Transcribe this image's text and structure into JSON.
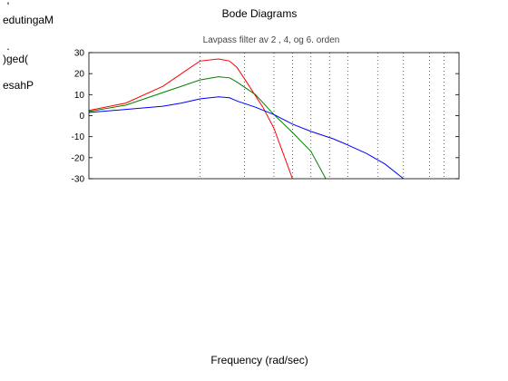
{
  "chart_data": {
    "type": "line",
    "title": "Bode Diagrams",
    "subtitle": "Lavpass filter av  2 , 4, og 6. orden",
    "xlabel": "Frequency (rad/sec)",
    "ylabel": "Phase (deg); Magnitude (dB)",
    "ylabel_rendered": "'\nedutingaM\n\n.\n)ged(\n\nesahP",
    "ylim": [
      -30,
      30
    ],
    "yticks": [
      30,
      20,
      10,
      0,
      -10,
      -20,
      -30
    ],
    "xlim": [
      0,
      1
    ],
    "x_scale": "log",
    "grid": "vertical dotted",
    "series": [
      {
        "color": "#ff0000",
        "x": [
          0,
          0.1,
          0.2,
          0.25,
          0.3,
          0.35,
          0.38,
          0.4,
          0.43,
          0.47,
          0.5,
          0.55
        ],
        "y": [
          2.5,
          6,
          14,
          20,
          26,
          27,
          26,
          23,
          15,
          4,
          -6,
          -30
        ]
      },
      {
        "color": "#008000",
        "x": [
          0,
          0.1,
          0.2,
          0.25,
          0.3,
          0.35,
          0.38,
          0.4,
          0.45,
          0.5,
          0.55,
          0.6,
          0.64
        ],
        "y": [
          2,
          5,
          11,
          14,
          17,
          18.5,
          18,
          16,
          10,
          0.5,
          -8,
          -17,
          -30
        ]
      },
      {
        "color": "#0000ff",
        "x": [
          0,
          0.1,
          0.2,
          0.25,
          0.3,
          0.35,
          0.38,
          0.4,
          0.45,
          0.5,
          0.55,
          0.6,
          0.66,
          0.7,
          0.75,
          0.8,
          0.85
        ],
        "y": [
          1.5,
          3,
          4.5,
          6,
          8,
          9,
          8.5,
          7,
          4,
          0.5,
          -4,
          -7.5,
          -11,
          -14,
          -18,
          -23,
          -30
        ]
      }
    ],
    "x_gridlines": [
      0.3,
      0.42,
      0.5,
      0.55,
      0.6,
      0.65,
      0.7,
      0.78,
      0.85,
      0.92,
      0.96
    ]
  }
}
